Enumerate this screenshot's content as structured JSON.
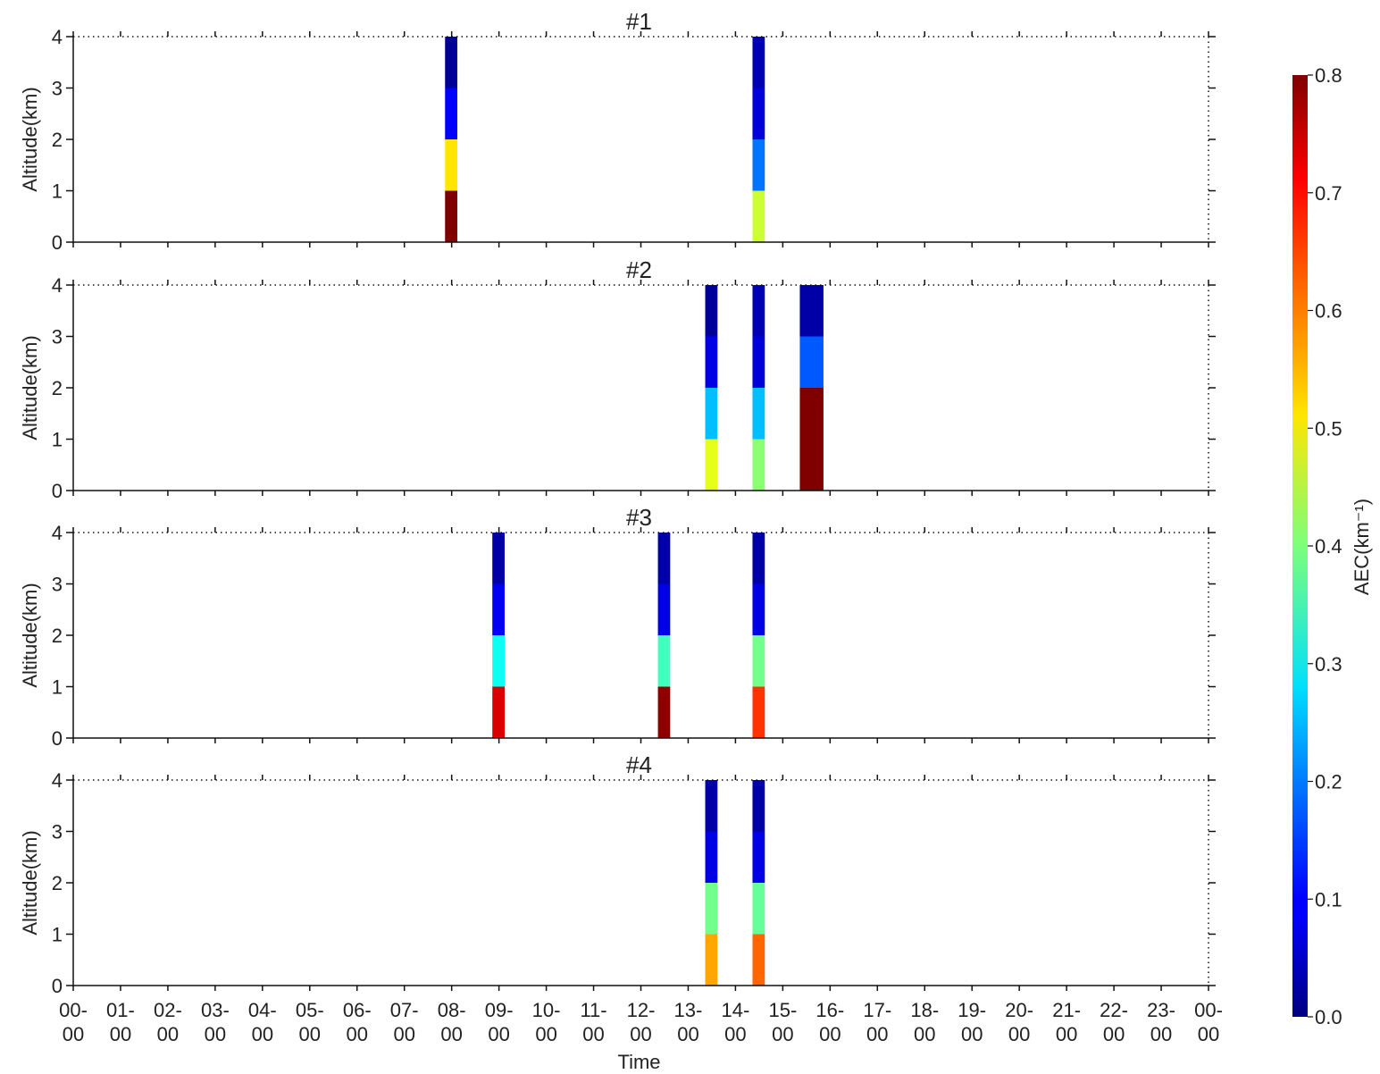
{
  "chart_data": {
    "type": "heatmap",
    "xlabel": "Time",
    "ylabel": "Altitude(km)",
    "xlim": [
      0,
      24
    ],
    "ylim": [
      0,
      4
    ],
    "grid": false,
    "x_tick_labels": [
      "00-\n00",
      "01-\n00",
      "02-\n00",
      "03-\n00",
      "04-\n00",
      "05-\n00",
      "06-\n00",
      "07-\n00",
      "08-\n00",
      "09-\n00",
      "10-\n00",
      "11-\n00",
      "12-\n00",
      "13-\n00",
      "14-\n00",
      "15-\n00",
      "16-\n00",
      "17-\n00",
      "18-\n00",
      "19-\n00",
      "20-\n00",
      "21-\n00",
      "22-\n00",
      "23-\n00",
      "00-\n00"
    ],
    "y_ticks": [
      0,
      1,
      2,
      3,
      4
    ],
    "y_tick_labels": [
      "0",
      "1",
      "2",
      "3",
      "4"
    ],
    "colorbar": {
      "label": "AEC(km⁻¹)",
      "colormap": "jet",
      "range": [
        0.0,
        0.8
      ],
      "ticks": [
        0.0,
        0.1,
        0.2,
        0.3,
        0.4,
        0.5,
        0.6,
        0.7,
        0.8
      ],
      "tick_labels": [
        "0.0",
        "0.1",
        "0.2",
        "0.3",
        "0.4",
        "0.5",
        "0.6",
        "0.7",
        "0.8"
      ]
    },
    "panels": [
      {
        "title": "#1",
        "columns": [
          {
            "x_start": 7.86,
            "x_end": 8.12,
            "aec_by_km": [
              0.8,
              0.52,
              0.1,
              0.02
            ]
          },
          {
            "x_start": 14.36,
            "x_end": 14.62,
            "aec_by_km": [
              0.46,
              0.19,
              0.07,
              0.04
            ]
          }
        ]
      },
      {
        "title": "#2",
        "columns": [
          {
            "x_start": 13.36,
            "x_end": 13.62,
            "aec_by_km": [
              0.48,
              0.25,
              0.08,
              0.02
            ]
          },
          {
            "x_start": 14.36,
            "x_end": 14.62,
            "aec_by_km": [
              0.41,
              0.25,
              0.07,
              0.04
            ]
          },
          {
            "x_start": 15.36,
            "x_end": 15.86,
            "aec_by_km": [
              0.8,
              0.8,
              0.17,
              0.03
            ]
          }
        ]
      },
      {
        "title": "#3",
        "columns": [
          {
            "x_start": 8.86,
            "x_end": 9.12,
            "aec_by_km": [
              0.73,
              0.31,
              0.09,
              0.03
            ]
          },
          {
            "x_start": 12.36,
            "x_end": 12.62,
            "aec_by_km": [
              0.79,
              0.35,
              0.08,
              0.03
            ]
          },
          {
            "x_start": 14.36,
            "x_end": 14.62,
            "aec_by_km": [
              0.66,
              0.39,
              0.08,
              0.03
            ]
          }
        ]
      },
      {
        "title": "#4",
        "columns": [
          {
            "x_start": 13.36,
            "x_end": 13.62,
            "aec_by_km": [
              0.57,
              0.39,
              0.08,
              0.03
            ]
          },
          {
            "x_start": 14.36,
            "x_end": 14.62,
            "aec_by_km": [
              0.62,
              0.38,
              0.08,
              0.03
            ]
          }
        ]
      }
    ]
  }
}
